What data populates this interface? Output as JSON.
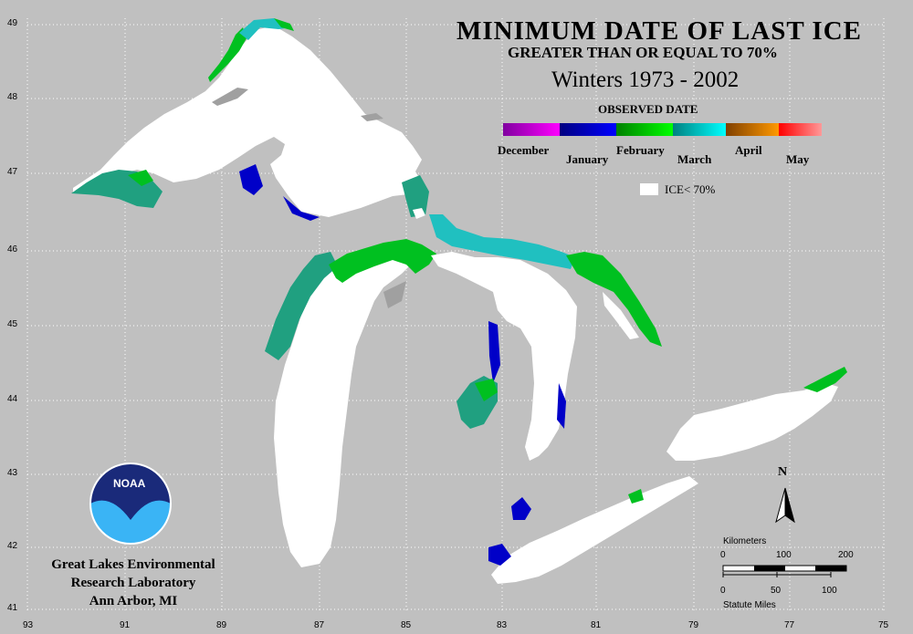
{
  "title": {
    "line1": "MINIMUM DATE OF LAST ICE",
    "line2": "GREATER THAN OR EQUAL TO 70%",
    "line3": "Winters 1973 - 2002"
  },
  "legend": {
    "heading": "OBSERVED DATE",
    "months": [
      "December",
      "January",
      "February",
      "March",
      "April",
      "May"
    ],
    "colors": [
      "#b000c0",
      "#0000c8",
      "#00c020",
      "#20c0c0",
      "#c06010",
      "#ff4040"
    ],
    "ice_label": "ICE< 70%"
  },
  "axes": {
    "lat_labels": [
      "49",
      "48",
      "47",
      "46",
      "45",
      "44",
      "43",
      "42",
      "41"
    ],
    "lon_labels": [
      "93",
      "91",
      "89",
      "87",
      "85",
      "83",
      "81",
      "79",
      "77",
      "75"
    ]
  },
  "org": {
    "logo_text": "NOAA",
    "line1": "Great Lakes Environmental",
    "line2": "Research Laboratory",
    "line3": "Ann Arbor, MI"
  },
  "scale": {
    "km_label": "Kilometers",
    "km_ticks": [
      "0",
      "100",
      "200"
    ],
    "mi_ticks": [
      "0",
      "50",
      "100"
    ],
    "mi_label": "Statute Miles",
    "north": "N"
  },
  "colors": {
    "background": "#c0c0c0",
    "lake": "#ffffff",
    "grid": "#ffffff"
  }
}
